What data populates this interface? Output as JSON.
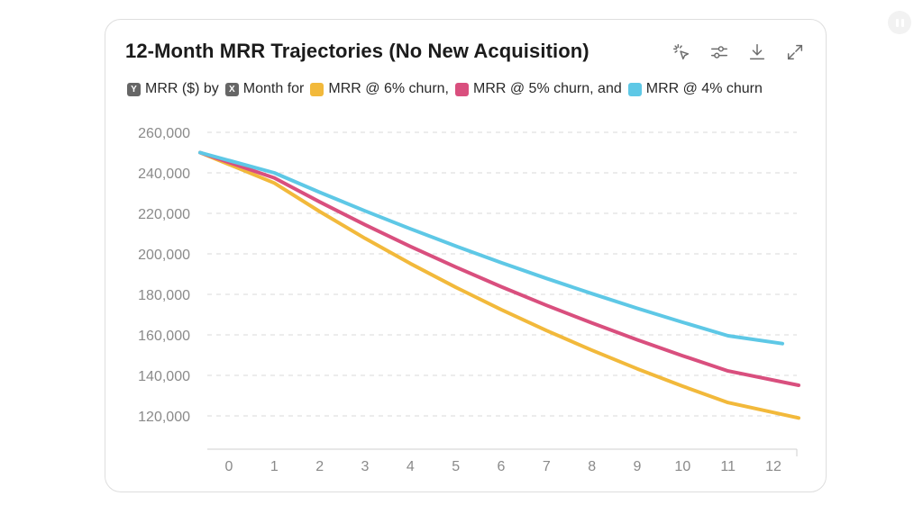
{
  "title": "12-Month MRR Trajectories (No New Acquisition)",
  "toolbar": {
    "icons": [
      "select-cursor-icon",
      "sliders-icon",
      "download-icon",
      "expand-icon"
    ]
  },
  "legend": {
    "y_badge": "Y",
    "y_text": "MRR ($) by",
    "x_badge": "X",
    "x_text": "Month for",
    "items": [
      {
        "label": "MRR @ 6% churn,",
        "color": "#f2b93b"
      },
      {
        "label": "MRR @ 5% churn, and",
        "color": "#d94f7e"
      },
      {
        "label": "MRR @ 4% churn",
        "color": "#5ec8e6"
      }
    ]
  },
  "chart_data": {
    "type": "line",
    "x": [
      0,
      1,
      2,
      3,
      4,
      5,
      6,
      7,
      8,
      9,
      10,
      11,
      12
    ],
    "ylim": [
      100000,
      260000
    ],
    "yticks": [
      260000,
      240000,
      220000,
      200000,
      180000,
      160000,
      140000,
      120000
    ],
    "ytick_labels": [
      "260,000",
      "240,000",
      "220,000",
      "200,000",
      "180,000",
      "160,000",
      "140,000",
      "120,000"
    ],
    "xtick_labels": [
      "0",
      "1",
      "2",
      "3",
      "4",
      "5",
      "6",
      "7",
      "8",
      "9",
      "10",
      "11",
      "12"
    ],
    "grid": true,
    "series": [
      {
        "name": "MRR @ 6% churn",
        "color": "#f2b93b",
        "values": [
          250000,
          235000,
          220900,
          207646,
          195187,
          183476,
          172467,
          162119,
          152392,
          143248,
          134653,
          126574,
          118980
        ]
      },
      {
        "name": "MRR @ 5% churn",
        "color": "#d94f7e",
        "values": [
          250000,
          237500,
          225625,
          214344,
          203627,
          193445,
          183773,
          174584,
          165855,
          157562,
          149684,
          142200,
          135090
        ]
      },
      {
        "name": "MRR @ 4% churn",
        "color": "#5ec8e6",
        "values": [
          250000,
          240000,
          230400,
          221184,
          212337,
          203843,
          195689,
          187861,
          180347,
          173133,
          166208,
          159559,
          155700
        ]
      }
    ]
  }
}
